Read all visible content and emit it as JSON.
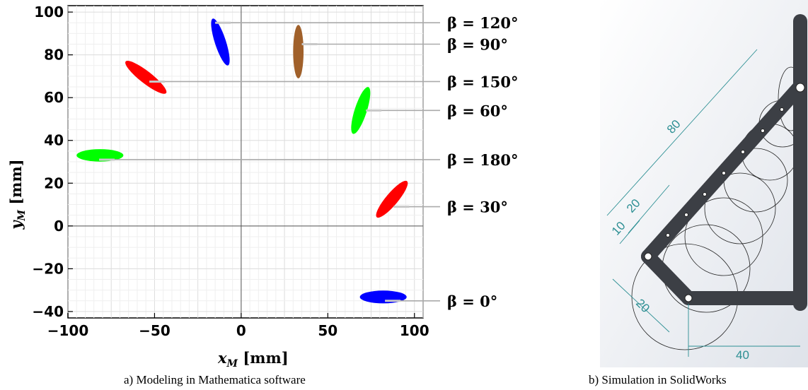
{
  "captions": {
    "a": "a) Modeling in Mathematica software",
    "b": "b) Simulation in SolidWorks"
  },
  "top_fragment": "p",
  "chart_data": {
    "type": "scatter",
    "title": "",
    "xlabel": "x",
    "xlabel_sub": "M",
    "xlabel_unit": " [mm]",
    "ylabel": "y",
    "ylabel_sub": "M",
    "ylabel_unit": " [mm]",
    "xlim": [
      -100,
      105
    ],
    "ylim": [
      -43,
      103
    ],
    "xticks": [
      -100,
      -50,
      0,
      50,
      100
    ],
    "xtick_labels": [
      "−100",
      "−50",
      "0",
      "50",
      "100"
    ],
    "yticks": [
      -40,
      -20,
      0,
      20,
      40,
      60,
      80,
      100
    ],
    "ytick_labels": [
      "−40",
      "−20",
      "0",
      "20",
      "40",
      "60",
      "80",
      "100"
    ],
    "grid": true,
    "legend": "right",
    "series": [
      {
        "name": "β = 120°",
        "color": "#0000ff",
        "cx": -12,
        "cy": 86,
        "rx": 3.2,
        "ry": 11.5,
        "angle": -18,
        "marker": [
          -15,
          95
        ]
      },
      {
        "name": "β = 90°",
        "color": "#a0602a",
        "cx": 33,
        "cy": 81.5,
        "rx": 3.0,
        "ry": 12.5,
        "angle": 0,
        "marker": [
          35,
          85
        ]
      },
      {
        "name": "β = 150°",
        "color": "#ff0000",
        "cx": -55,
        "cy": 69.5,
        "rx": 3.5,
        "ry": 12,
        "angle": -52,
        "marker": [
          -53,
          67.5
        ]
      },
      {
        "name": "β = 60°",
        "color": "#00ff00",
        "cx": 69,
        "cy": 54,
        "rx": 3.5,
        "ry": 11.5,
        "angle": 18,
        "marker": [
          72,
          54
        ]
      },
      {
        "name": "β = 180°",
        "color": "#00ff00",
        "cx": -81.5,
        "cy": 33,
        "rx": 13.5,
        "ry": 2.9,
        "angle": 0,
        "marker": [
          -82,
          31
        ]
      },
      {
        "name": "β = 30°",
        "color": "#ff0000",
        "cx": 87,
        "cy": 12.5,
        "rx": 3.5,
        "ry": 11,
        "angle": 40,
        "marker": [
          88,
          9
        ]
      },
      {
        "name": "β = 0°",
        "color": "#0000ff",
        "cx": 82,
        "cy": -33.2,
        "rx": 13.5,
        "ry": 3.0,
        "angle": 0,
        "marker": [
          83,
          -35
        ]
      }
    ],
    "label_values_y": [
      95,
      85,
      67.5,
      54,
      31,
      9,
      -35
    ]
  },
  "solidworks": {
    "dims": [
      "80",
      "20",
      "10",
      "20",
      "40"
    ]
  }
}
